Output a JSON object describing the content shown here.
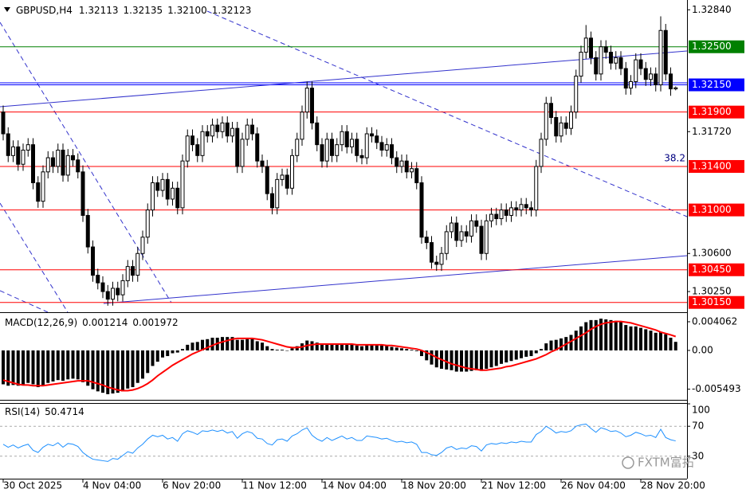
{
  "chart_data": [
    {
      "type": "candlestick",
      "symbol": "GBPUSD,H4",
      "last_bar_labels": [
        "1.32113",
        "1.32135",
        "1.32100",
        "1.32123"
      ],
      "categories": [
        "30 Oct 2025",
        null,
        null,
        null,
        null,
        null,
        null,
        null,
        null,
        null,
        null,
        null,
        null,
        null,
        null,
        null,
        "4 Nov 04:00",
        null,
        null,
        null,
        null,
        null,
        null,
        null,
        null,
        null,
        null,
        null,
        null,
        null,
        null,
        null,
        "6 Nov 20:00",
        null,
        null,
        null,
        null,
        null,
        null,
        null,
        null,
        null,
        null,
        null,
        null,
        null,
        null,
        null,
        "11 Nov 12:00",
        null,
        null,
        null,
        null,
        null,
        null,
        null,
        null,
        null,
        null,
        null,
        null,
        null,
        null,
        null,
        "14 Nov 04:00",
        null,
        null,
        null,
        null,
        null,
        null,
        null,
        null,
        null,
        null,
        null,
        null,
        null,
        null,
        null,
        "18 Nov 20:00",
        null,
        null,
        null,
        null,
        null,
        null,
        null,
        null,
        null,
        null,
        null,
        null,
        null,
        null,
        null,
        "21 Nov 12:00",
        null,
        null,
        null,
        null,
        null,
        null,
        null,
        null,
        null,
        null,
        null,
        null,
        null,
        null,
        null,
        "26 Nov 04:00",
        null,
        null,
        null,
        null,
        null,
        null,
        null,
        null,
        null,
        null,
        null,
        null,
        null,
        null,
        null,
        "28 Nov 20:00",
        null,
        null,
        null,
        null,
        null,
        null,
        null
      ],
      "open": [
        1.319,
        1.317,
        1.315,
        1.3158,
        1.3142,
        1.3155,
        1.316,
        1.3125,
        1.3108,
        1.3135,
        1.3148,
        1.314,
        1.3155,
        1.3132,
        1.315,
        1.3146,
        1.3135,
        1.3095,
        1.3066,
        1.304,
        1.3033,
        1.3025,
        1.3018,
        1.3028,
        1.3022,
        1.3035,
        1.3048,
        1.304,
        1.306,
        1.3075,
        1.31,
        1.3125,
        1.3118,
        1.3128,
        1.311,
        1.312,
        1.3102,
        1.3145,
        1.3168,
        1.316,
        1.315,
        1.3172,
        1.3168,
        1.3178,
        1.3172,
        1.318,
        1.3168,
        1.3175,
        1.314,
        1.3165,
        1.3178,
        1.317,
        1.3145,
        1.314,
        1.3115,
        1.3102,
        1.3128,
        1.3132,
        1.312,
        1.315,
        1.3165,
        1.319,
        1.3212,
        1.318,
        1.316,
        1.3145,
        1.3165,
        1.315,
        1.316,
        1.3172,
        1.3158,
        1.3165,
        1.315,
        1.3148,
        1.317,
        1.3168,
        1.3162,
        1.3155,
        1.316,
        1.3148,
        1.314,
        1.3145,
        1.3135,
        1.3138,
        1.3125,
        1.3075,
        1.307,
        1.3052,
        1.305,
        1.306,
        1.308,
        1.3088,
        1.3072,
        1.308,
        1.3076,
        1.309,
        1.3085,
        1.306,
        1.309,
        1.3096,
        1.3092,
        1.31,
        1.3095,
        1.3102,
        1.31,
        1.3105,
        1.3102,
        1.31,
        1.314,
        1.3165,
        1.3198,
        1.3185,
        1.3168,
        1.318,
        1.3175,
        1.319,
        1.3223,
        1.3245,
        1.3258,
        1.324,
        1.3225,
        1.325,
        1.3245,
        1.3235,
        1.324,
        1.323,
        1.3212,
        1.3218,
        1.3238,
        1.323,
        1.322,
        1.3225,
        1.3215,
        1.3265,
        1.3225,
        1.32113
      ],
      "high": [
        1.3196,
        1.3176,
        1.3164,
        1.3164,
        1.3161,
        1.3166,
        1.3166,
        1.3131,
        1.3141,
        1.3154,
        1.3154,
        1.3161,
        1.3161,
        1.3156,
        1.3156,
        1.3152,
        1.3141,
        1.3101,
        1.3072,
        1.3046,
        1.3039,
        1.3031,
        1.3034,
        1.3034,
        1.3041,
        1.3054,
        1.3054,
        1.3066,
        1.3081,
        1.3106,
        1.3131,
        1.3131,
        1.3134,
        1.3134,
        1.3126,
        1.3126,
        1.3151,
        1.3174,
        1.3174,
        1.3166,
        1.3178,
        1.3178,
        1.3184,
        1.3184,
        1.3186,
        1.3186,
        1.3181,
        1.3181,
        1.3171,
        1.3184,
        1.3184,
        1.3176,
        1.3151,
        1.3146,
        1.3121,
        1.3134,
        1.3138,
        1.3138,
        1.3156,
        1.3171,
        1.3196,
        1.3218,
        1.3218,
        1.3186,
        1.3166,
        1.3171,
        1.3171,
        1.3166,
        1.3178,
        1.3178,
        1.3171,
        1.3171,
        1.3156,
        1.3176,
        1.3176,
        1.3174,
        1.3168,
        1.3166,
        1.3166,
        1.3154,
        1.3151,
        1.3151,
        1.3144,
        1.3144,
        1.3131,
        1.3081,
        1.3076,
        1.3058,
        1.3066,
        1.3086,
        1.3094,
        1.3094,
        1.3086,
        1.3086,
        1.3096,
        1.3096,
        1.3091,
        1.3096,
        1.3102,
        1.3102,
        1.3106,
        1.3106,
        1.3108,
        1.3108,
        1.3111,
        1.3111,
        1.3108,
        1.3146,
        1.3171,
        1.3204,
        1.3204,
        1.3191,
        1.3186,
        1.3186,
        1.3196,
        1.3229,
        1.3251,
        1.327,
        1.3264,
        1.3246,
        1.3256,
        1.3256,
        1.3251,
        1.3246,
        1.3246,
        1.3236,
        1.3224,
        1.3244,
        1.3244,
        1.3236,
        1.3231,
        1.3231,
        1.3278,
        1.3271,
        1.3231,
        1.32135
      ],
      "low": [
        1.3164,
        1.3144,
        1.3144,
        1.3136,
        1.3136,
        1.3149,
        1.3119,
        1.3102,
        1.3102,
        1.3129,
        1.3134,
        1.3134,
        1.3126,
        1.3126,
        1.314,
        1.3129,
        1.3089,
        1.306,
        1.3034,
        1.3027,
        1.3019,
        1.3012,
        1.3012,
        1.3016,
        1.3016,
        1.3029,
        1.3034,
        1.3034,
        1.3054,
        1.3069,
        1.3094,
        1.3112,
        1.3112,
        1.3104,
        1.3104,
        1.3096,
        1.3096,
        1.3139,
        1.3154,
        1.3144,
        1.3144,
        1.3162,
        1.3162,
        1.3166,
        1.3166,
        1.3162,
        1.3162,
        1.3134,
        1.3134,
        1.3159,
        1.3164,
        1.3139,
        1.3134,
        1.3109,
        1.3096,
        1.3096,
        1.3122,
        1.3114,
        1.3114,
        1.3144,
        1.3159,
        1.3184,
        1.3174,
        1.3154,
        1.3139,
        1.3139,
        1.3144,
        1.3144,
        1.3154,
        1.3152,
        1.3152,
        1.3144,
        1.3142,
        1.3142,
        1.3162,
        1.3156,
        1.3149,
        1.3149,
        1.3142,
        1.3134,
        1.3134,
        1.3129,
        1.3129,
        1.3119,
        1.3069,
        1.3064,
        1.3046,
        1.3044,
        1.3044,
        1.3054,
        1.3074,
        1.3066,
        1.3066,
        1.307,
        1.307,
        1.3079,
        1.3054,
        1.3054,
        1.3084,
        1.3086,
        1.3086,
        1.3089,
        1.3089,
        1.3094,
        1.3094,
        1.3096,
        1.3094,
        1.3094,
        1.3134,
        1.3159,
        1.3179,
        1.3162,
        1.3162,
        1.3169,
        1.3169,
        1.3184,
        1.3217,
        1.3239,
        1.3234,
        1.3219,
        1.3219,
        1.3239,
        1.3229,
        1.3229,
        1.3224,
        1.3206,
        1.3206,
        1.3212,
        1.3224,
        1.3214,
        1.3214,
        1.3209,
        1.3209,
        1.3219,
        1.3205,
        1.321
      ],
      "close": [
        1.317,
        1.315,
        1.3158,
        1.3142,
        1.3155,
        1.316,
        1.3125,
        1.3108,
        1.3135,
        1.3148,
        1.314,
        1.3155,
        1.3132,
        1.315,
        1.3146,
        1.3135,
        1.3095,
        1.3066,
        1.304,
        1.3033,
        1.3025,
        1.3018,
        1.3028,
        1.3022,
        1.3035,
        1.3048,
        1.304,
        1.306,
        1.3075,
        1.31,
        1.3125,
        1.3118,
        1.3128,
        1.311,
        1.312,
        1.3102,
        1.3145,
        1.3168,
        1.316,
        1.315,
        1.3172,
        1.3168,
        1.3178,
        1.3172,
        1.318,
        1.3168,
        1.3175,
        1.314,
        1.3165,
        1.3178,
        1.317,
        1.3145,
        1.314,
        1.3115,
        1.3102,
        1.3128,
        1.3132,
        1.312,
        1.315,
        1.3165,
        1.319,
        1.3212,
        1.318,
        1.316,
        1.3145,
        1.3165,
        1.315,
        1.316,
        1.3172,
        1.3158,
        1.3165,
        1.315,
        1.3148,
        1.317,
        1.3168,
        1.3162,
        1.3155,
        1.316,
        1.3148,
        1.314,
        1.3145,
        1.3135,
        1.3138,
        1.3125,
        1.3075,
        1.307,
        1.3052,
        1.305,
        1.306,
        1.308,
        1.3088,
        1.3072,
        1.308,
        1.3076,
        1.309,
        1.3085,
        1.306,
        1.309,
        1.3096,
        1.3092,
        1.31,
        1.3095,
        1.3102,
        1.31,
        1.3105,
        1.3102,
        1.31,
        1.314,
        1.3165,
        1.3198,
        1.3185,
        1.3168,
        1.318,
        1.3175,
        1.319,
        1.3223,
        1.3245,
        1.3258,
        1.324,
        1.3225,
        1.325,
        1.3245,
        1.3235,
        1.324,
        1.323,
        1.3212,
        1.3218,
        1.3238,
        1.323,
        1.322,
        1.3225,
        1.3215,
        1.3265,
        1.3225,
        1.32113,
        1.32123
      ],
      "bull_color": "#ffffff",
      "bear_color": "#000000",
      "ylim": [
        1.3006,
        1.3293
      ],
      "yticks": [
        {
          "value": 1.3284,
          "label": "1.32840"
        },
        {
          "value": 1.3172,
          "label": "1.31720"
        },
        {
          "value": 1.306,
          "label": "1.30600"
        },
        {
          "value": 1.3025,
          "label": "1.30250"
        }
      ],
      "levels": [
        {
          "value": 1.325,
          "label": "1.32500",
          "color": "#008000"
        },
        {
          "value": 1.3215,
          "label": "1.32150",
          "color": "#0000ff"
        },
        {
          "value": 1.319,
          "label": "1.31900",
          "color": "#ff0000"
        },
        {
          "value": 1.314,
          "label": "1.31400",
          "color": "#ff0000"
        },
        {
          "value": 1.31,
          "label": "1.31000",
          "color": "#ff0000"
        },
        {
          "value": 1.3045,
          "label": "1.30450",
          "color": "#ff0000"
        },
        {
          "value": 1.3015,
          "label": "1.30150",
          "color": "#ff0000"
        }
      ],
      "fib_label": "38.2",
      "watermark": "FXTM富拓"
    },
    {
      "type": "macd",
      "title": "MACD(12,26,9)",
      "histogram": [
        -0.0048,
        -0.005,
        -0.0049,
        -0.005,
        -0.0048,
        -0.0046,
        -0.0048,
        -0.0052,
        -0.005,
        -0.0046,
        -0.0044,
        -0.0042,
        -0.0043,
        -0.0041,
        -0.004,
        -0.0041,
        -0.0045,
        -0.005,
        -0.0055,
        -0.0058,
        -0.006,
        -0.0062,
        -0.0061,
        -0.006,
        -0.0058,
        -0.0054,
        -0.0052,
        -0.0046,
        -0.004,
        -0.0032,
        -0.0022,
        -0.0016,
        -0.001,
        -0.0008,
        -0.0004,
        -0.0003,
        0.0002,
        0.0008,
        0.0011,
        0.0012,
        0.0015,
        0.0016,
        0.0018,
        0.0018,
        0.0019,
        0.0019,
        0.0019,
        0.0015,
        0.0015,
        0.0016,
        0.0016,
        0.0013,
        0.0011,
        0.0006,
        0.0002,
        0.0001,
        0.0001,
        0.0,
        0.0003,
        0.0006,
        0.001,
        0.0014,
        0.0013,
        0.0011,
        0.0009,
        0.0009,
        0.0008,
        0.0008,
        0.0009,
        0.0008,
        0.0008,
        0.0007,
        0.0006,
        0.0008,
        0.0008,
        0.0008,
        0.0007,
        0.0007,
        0.0005,
        0.0004,
        0.0003,
        0.0002,
        0.0001,
        -0.0001,
        -0.0008,
        -0.0014,
        -0.002,
        -0.0024,
        -0.0026,
        -0.0027,
        -0.0028,
        -0.003,
        -0.003,
        -0.003,
        -0.0029,
        -0.0028,
        -0.0029,
        -0.0026,
        -0.0024,
        -0.0022,
        -0.0019,
        -0.0017,
        -0.0015,
        -0.0013,
        -0.0011,
        -0.0009,
        -0.0008,
        -0.0004,
        0.0002,
        0.001,
        0.0014,
        0.0015,
        0.0017,
        0.0019,
        0.0022,
        0.0028,
        0.0034,
        0.004,
        0.0043,
        0.0043,
        0.0045,
        0.0044,
        0.0043,
        0.0042,
        0.004,
        0.0036,
        0.0034,
        0.0034,
        0.0032,
        0.003,
        0.0028,
        0.0025,
        0.0026,
        0.0023,
        0.0018,
        0.001214
      ],
      "signal": [
        -0.0042,
        -0.0044,
        -0.0046,
        -0.0048,
        -0.0049,
        -0.0049,
        -0.005,
        -0.005,
        -0.005,
        -0.0049,
        -0.0048,
        -0.0047,
        -0.0046,
        -0.0045,
        -0.0044,
        -0.0043,
        -0.0043,
        -0.0043,
        -0.0045,
        -0.0047,
        -0.0049,
        -0.0052,
        -0.0054,
        -0.0056,
        -0.0057,
        -0.0057,
        -0.0056,
        -0.0054,
        -0.0051,
        -0.0047,
        -0.0042,
        -0.0036,
        -0.0031,
        -0.0026,
        -0.0021,
        -0.0017,
        -0.0013,
        -0.0009,
        -0.0005,
        -0.0002,
        0.0001,
        0.0004,
        0.0007,
        0.001,
        0.0012,
        0.0014,
        0.0016,
        0.0017,
        0.0017,
        0.0017,
        0.0017,
        0.0016,
        0.0015,
        0.0013,
        0.0011,
        0.0009,
        0.0007,
        0.0005,
        0.0004,
        0.0004,
        0.0005,
        0.0007,
        0.0008,
        0.0009,
        0.0009,
        0.0009,
        0.0009,
        0.0009,
        0.0009,
        0.0009,
        0.0009,
        0.0008,
        0.0008,
        0.0008,
        0.0008,
        0.0008,
        0.0008,
        0.0007,
        0.0007,
        0.0006,
        0.0005,
        0.0004,
        0.0003,
        0.0002,
        0.0,
        -0.0003,
        -0.0006,
        -0.001,
        -0.0013,
        -0.0016,
        -0.0019,
        -0.0021,
        -0.0023,
        -0.0025,
        -0.0026,
        -0.0027,
        -0.0028,
        -0.0028,
        -0.0027,
        -0.0026,
        -0.0025,
        -0.0023,
        -0.0022,
        -0.002,
        -0.0018,
        -0.0016,
        -0.0014,
        -0.0012,
        -0.0009,
        -0.0006,
        -0.0002,
        0.0001,
        0.0005,
        0.0009,
        0.0013,
        0.0017,
        0.0021,
        0.0025,
        0.003,
        0.0034,
        0.0037,
        0.0039,
        0.004,
        0.0041,
        0.0041,
        0.004,
        0.0039,
        0.0037,
        0.0035,
        0.0033,
        0.0031,
        0.0029,
        0.0026,
        0.0024,
        0.0022,
        0.001972
      ],
      "histogram_color": "#000000",
      "signal_color": "#ff0000",
      "ylim": [
        -0.007,
        0.0053
      ],
      "yticks": [
        0.004062,
        {
          "value": 0,
          "label": "0.00"
        },
        -0.005493
      ]
    },
    {
      "type": "rsi",
      "title": "RSI(14)",
      "values": [
        46,
        42,
        45,
        41,
        44,
        46,
        38,
        35,
        42,
        46,
        44,
        48,
        42,
        47,
        46,
        43,
        35,
        30,
        26,
        25,
        24,
        23,
        27,
        26,
        31,
        36,
        34,
        41,
        46,
        53,
        58,
        56,
        58,
        53,
        55,
        50,
        60,
        64,
        62,
        59,
        64,
        63,
        65,
        63,
        65,
        61,
        63,
        54,
        60,
        63,
        61,
        54,
        53,
        47,
        45,
        52,
        53,
        50,
        57,
        60,
        65,
        68,
        58,
        53,
        50,
        55,
        51,
        54,
        57,
        53,
        55,
        51,
        51,
        57,
        56,
        55,
        53,
        54,
        51,
        49,
        50,
        48,
        49,
        46,
        35,
        35,
        32,
        31,
        35,
        41,
        43,
        39,
        41,
        40,
        44,
        43,
        37,
        45,
        47,
        46,
        48,
        47,
        49,
        48,
        50,
        49,
        49,
        59,
        63,
        70,
        66,
        61,
        63,
        62,
        64,
        70,
        72,
        73,
        67,
        62,
        68,
        66,
        63,
        64,
        61,
        56,
        58,
        62,
        60,
        57,
        58,
        55,
        66,
        55,
        52,
        50.4714
      ],
      "color": "#1e90ff",
      "ylim": [
        0,
        100
      ],
      "yticks": [
        100,
        70,
        30
      ],
      "levels": [
        70,
        30
      ]
    }
  ]
}
